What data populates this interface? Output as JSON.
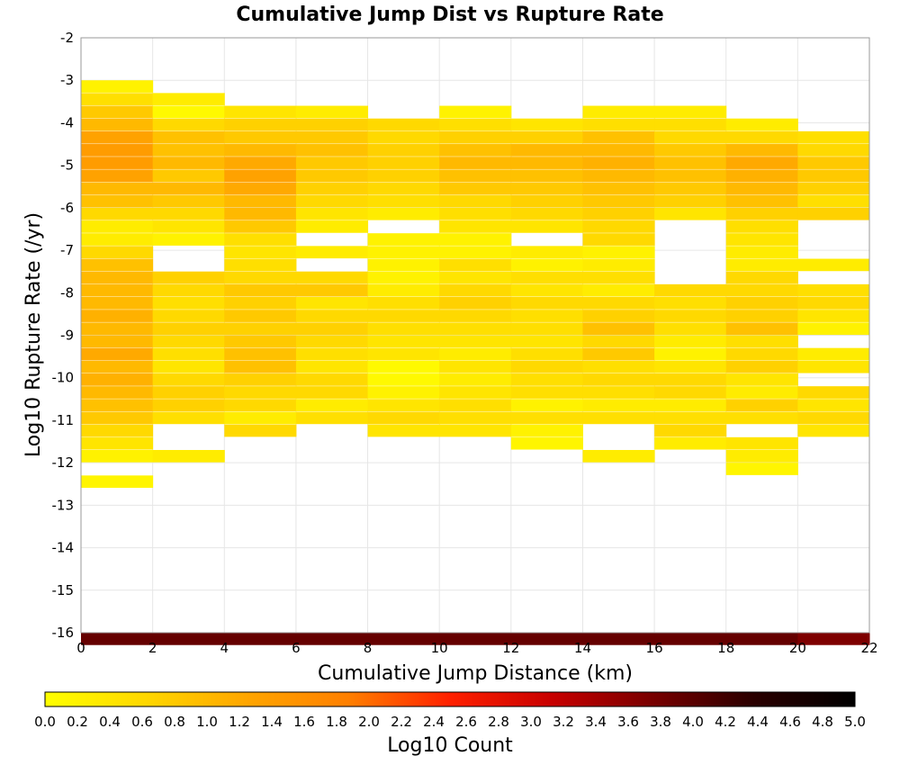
{
  "chart_data": {
    "type": "heatmap",
    "title": "Cumulative Jump Dist vs Rupture Rate",
    "xlabel": "Cumulative Jump Distance (km)",
    "ylabel": "Log10 Rupture Rate (/yr)",
    "xlim": [
      0,
      22
    ],
    "ylim": [
      -16,
      -2
    ],
    "xticks": [
      "0",
      "2",
      "4",
      "6",
      "8",
      "10",
      "12",
      "14",
      "16",
      "18",
      "20",
      "22"
    ],
    "yticks": [
      "-2",
      "-3",
      "-4",
      "-5",
      "-6",
      "-7",
      "-8",
      "-9",
      "-10",
      "-11",
      "-12",
      "-13",
      "-14",
      "-15",
      "-16"
    ],
    "x_bin_width": 2,
    "y_bin_height": 0.28,
    "grid": true,
    "colorbar": {
      "label": "Log10 Count",
      "min": 0.0,
      "max": 5.0,
      "ticks": [
        "0.0",
        "0.2",
        "0.4",
        "0.6",
        "0.8",
        "1.0",
        "1.2",
        "1.4",
        "1.6",
        "1.8",
        "2.0",
        "2.2",
        "2.4",
        "2.6",
        "2.8",
        "3.0",
        "3.2",
        "3.4",
        "3.6",
        "3.8",
        "4.0",
        "4.2",
        "4.4",
        "4.6",
        "4.8",
        "5.0"
      ],
      "stops": [
        "#ffff00",
        "#ffd700",
        "#ffa500",
        "#ff7f00",
        "#ff2000",
        "#c80000",
        "#780000",
        "#2a0000",
        "#000000"
      ]
    },
    "columns": [
      {
        "x_start": 0,
        "cells": [
          [
            -3.0,
            0.2
          ],
          [
            -3.3,
            0.5
          ],
          [
            -3.6,
            0.8
          ],
          [
            -3.9,
            1.0
          ],
          [
            -4.2,
            1.3
          ],
          [
            -4.5,
            1.4
          ],
          [
            -4.8,
            1.4
          ],
          [
            -5.1,
            1.3
          ],
          [
            -5.4,
            1.0
          ],
          [
            -5.7,
            0.9
          ],
          [
            -6.0,
            0.6
          ],
          [
            -6.3,
            0.3
          ],
          [
            -6.6,
            0.3
          ],
          [
            -6.9,
            0.6
          ],
          [
            -7.2,
            0.9
          ],
          [
            -7.5,
            1.0
          ],
          [
            -7.8,
            1.0
          ],
          [
            -8.1,
            1.0
          ],
          [
            -8.4,
            1.1
          ],
          [
            -8.7,
            1.0
          ],
          [
            -9.0,
            1.0
          ],
          [
            -9.3,
            1.2
          ],
          [
            -9.6,
            1.0
          ],
          [
            -9.9,
            1.1
          ],
          [
            -10.2,
            1.0
          ],
          [
            -10.5,
            0.9
          ],
          [
            -10.8,
            0.8
          ],
          [
            -11.1,
            0.6
          ],
          [
            -11.4,
            0.4
          ],
          [
            -11.7,
            0.2
          ],
          [
            -12.3,
            0.15
          ],
          [
            -16.0,
            3.9
          ]
        ]
      },
      {
        "x_start": 2,
        "cells": [
          [
            -3.3,
            0.3
          ],
          [
            -3.6,
            0.1
          ],
          [
            -3.9,
            0.6
          ],
          [
            -4.2,
            0.9
          ],
          [
            -4.5,
            0.9
          ],
          [
            -4.8,
            1.0
          ],
          [
            -5.1,
            0.8
          ],
          [
            -5.4,
            1.0
          ],
          [
            -5.7,
            0.8
          ],
          [
            -6.0,
            0.6
          ],
          [
            -6.3,
            0.4
          ],
          [
            -6.6,
            0.2
          ],
          [
            -7.5,
            0.7
          ],
          [
            -7.8,
            0.6
          ],
          [
            -8.1,
            0.5
          ],
          [
            -8.4,
            0.6
          ],
          [
            -8.7,
            0.7
          ],
          [
            -9.0,
            0.6
          ],
          [
            -9.3,
            0.5
          ],
          [
            -9.6,
            0.4
          ],
          [
            -9.9,
            0.6
          ],
          [
            -10.2,
            0.7
          ],
          [
            -10.5,
            0.7
          ],
          [
            -10.8,
            0.5
          ],
          [
            -11.7,
            0.3
          ],
          [
            -16.0,
            3.9
          ]
        ]
      },
      {
        "x_start": 4,
        "cells": [
          [
            -3.6,
            0.4
          ],
          [
            -3.9,
            0.7
          ],
          [
            -4.2,
            0.8
          ],
          [
            -4.5,
            1.0
          ],
          [
            -4.8,
            1.2
          ],
          [
            -5.1,
            1.3
          ],
          [
            -5.4,
            1.2
          ],
          [
            -5.7,
            1.0
          ],
          [
            -6.0,
            1.0
          ],
          [
            -6.3,
            0.8
          ],
          [
            -6.6,
            0.5
          ],
          [
            -6.9,
            0.4
          ],
          [
            -7.2,
            0.5
          ],
          [
            -7.5,
            0.6
          ],
          [
            -7.8,
            0.8
          ],
          [
            -8.1,
            0.7
          ],
          [
            -8.4,
            0.8
          ],
          [
            -8.7,
            0.7
          ],
          [
            -9.0,
            0.8
          ],
          [
            -9.3,
            0.9
          ],
          [
            -9.6,
            0.9
          ],
          [
            -9.9,
            0.7
          ],
          [
            -10.2,
            0.6
          ],
          [
            -10.5,
            0.6
          ],
          [
            -10.8,
            0.3
          ],
          [
            -11.1,
            0.6
          ],
          [
            -16.0,
            3.9
          ]
        ]
      },
      {
        "x_start": 6,
        "cells": [
          [
            -3.6,
            0.3
          ],
          [
            -3.9,
            0.7
          ],
          [
            -4.2,
            0.8
          ],
          [
            -4.5,
            0.9
          ],
          [
            -4.8,
            0.8
          ],
          [
            -5.1,
            0.8
          ],
          [
            -5.4,
            0.7
          ],
          [
            -5.7,
            0.6
          ],
          [
            -6.0,
            0.4
          ],
          [
            -6.3,
            0.3
          ],
          [
            -6.9,
            0.3
          ],
          [
            -7.5,
            0.6
          ],
          [
            -7.8,
            0.8
          ],
          [
            -8.1,
            0.4
          ],
          [
            -8.4,
            0.6
          ],
          [
            -8.7,
            0.7
          ],
          [
            -9.0,
            0.6
          ],
          [
            -9.3,
            0.5
          ],
          [
            -9.6,
            0.4
          ],
          [
            -9.9,
            0.6
          ],
          [
            -10.2,
            0.6
          ],
          [
            -10.5,
            0.3
          ],
          [
            -10.8,
            0.5
          ],
          [
            -16.0,
            3.9
          ]
        ]
      },
      {
        "x_start": 8,
        "cells": [
          [
            -3.9,
            0.6
          ],
          [
            -4.2,
            0.6
          ],
          [
            -4.5,
            0.7
          ],
          [
            -4.8,
            0.7
          ],
          [
            -5.1,
            0.7
          ],
          [
            -5.4,
            0.6
          ],
          [
            -5.7,
            0.5
          ],
          [
            -6.0,
            0.3
          ],
          [
            -6.6,
            0.2
          ],
          [
            -6.9,
            0.2
          ],
          [
            -7.2,
            0.2
          ],
          [
            -7.5,
            0.2
          ],
          [
            -7.8,
            0.3
          ],
          [
            -8.1,
            0.5
          ],
          [
            -8.4,
            0.6
          ],
          [
            -8.7,
            0.5
          ],
          [
            -9.0,
            0.4
          ],
          [
            -9.3,
            0.4
          ],
          [
            -9.6,
            0.1
          ],
          [
            -9.9,
            0.1
          ],
          [
            -10.2,
            0.2
          ],
          [
            -10.5,
            0.4
          ],
          [
            -10.8,
            0.6
          ],
          [
            -11.1,
            0.4
          ],
          [
            -16.0,
            3.9
          ]
        ]
      },
      {
        "x_start": 10,
        "cells": [
          [
            -3.6,
            0.2
          ],
          [
            -3.9,
            0.5
          ],
          [
            -4.2,
            0.7
          ],
          [
            -4.5,
            0.9
          ],
          [
            -4.8,
            1.0
          ],
          [
            -5.1,
            0.9
          ],
          [
            -5.4,
            0.8
          ],
          [
            -5.7,
            0.6
          ],
          [
            -6.0,
            0.5
          ],
          [
            -6.3,
            0.4
          ],
          [
            -6.6,
            0.2
          ],
          [
            -6.9,
            0.2
          ],
          [
            -7.2,
            0.5
          ],
          [
            -7.5,
            0.4
          ],
          [
            -7.8,
            0.6
          ],
          [
            -8.1,
            0.7
          ],
          [
            -8.4,
            0.6
          ],
          [
            -8.7,
            0.5
          ],
          [
            -9.0,
            0.4
          ],
          [
            -9.3,
            0.3
          ],
          [
            -9.6,
            0.4
          ],
          [
            -9.9,
            0.3
          ],
          [
            -10.2,
            0.4
          ],
          [
            -10.5,
            0.5
          ],
          [
            -10.8,
            0.5
          ],
          [
            -11.1,
            0.4
          ],
          [
            -16.0,
            3.9
          ]
        ]
      },
      {
        "x_start": 12,
        "cells": [
          [
            -3.9,
            0.4
          ],
          [
            -4.2,
            0.7
          ],
          [
            -4.5,
            1.0
          ],
          [
            -4.8,
            1.0
          ],
          [
            -5.1,
            0.9
          ],
          [
            -5.4,
            0.8
          ],
          [
            -5.7,
            0.7
          ],
          [
            -6.0,
            0.6
          ],
          [
            -6.3,
            0.4
          ],
          [
            -6.9,
            0.3
          ],
          [
            -7.2,
            0.2
          ],
          [
            -7.5,
            0.5
          ],
          [
            -7.8,
            0.4
          ],
          [
            -8.1,
            0.6
          ],
          [
            -8.4,
            0.5
          ],
          [
            -8.7,
            0.5
          ],
          [
            -9.0,
            0.4
          ],
          [
            -9.3,
            0.5
          ],
          [
            -9.6,
            0.6
          ],
          [
            -9.9,
            0.5
          ],
          [
            -10.2,
            0.5
          ],
          [
            -10.5,
            0.2
          ],
          [
            -10.8,
            0.5
          ],
          [
            -11.1,
            0.2
          ],
          [
            -11.4,
            0.15
          ],
          [
            -16.0,
            3.9
          ]
        ]
      },
      {
        "x_start": 14,
        "cells": [
          [
            -3.6,
            0.3
          ],
          [
            -3.9,
            0.5
          ],
          [
            -4.2,
            0.9
          ],
          [
            -4.5,
            1.0
          ],
          [
            -4.8,
            1.1
          ],
          [
            -5.1,
            1.0
          ],
          [
            -5.4,
            0.9
          ],
          [
            -5.7,
            0.8
          ],
          [
            -6.0,
            0.7
          ],
          [
            -6.3,
            0.6
          ],
          [
            -6.6,
            0.6
          ],
          [
            -6.9,
            0.2
          ],
          [
            -7.2,
            0.3
          ],
          [
            -7.5,
            0.5
          ],
          [
            -7.8,
            0.3
          ],
          [
            -8.1,
            0.6
          ],
          [
            -8.4,
            0.7
          ],
          [
            -8.7,
            0.9
          ],
          [
            -9.0,
            0.6
          ],
          [
            -9.3,
            0.8
          ],
          [
            -9.6,
            0.5
          ],
          [
            -9.9,
            0.6
          ],
          [
            -10.2,
            0.5
          ],
          [
            -10.5,
            0.3
          ],
          [
            -10.8,
            0.5
          ],
          [
            -11.7,
            0.3
          ],
          [
            -16.0,
            3.9
          ]
        ]
      },
      {
        "x_start": 16,
        "cells": [
          [
            -3.6,
            0.3
          ],
          [
            -3.9,
            0.5
          ],
          [
            -4.2,
            0.6
          ],
          [
            -4.5,
            0.8
          ],
          [
            -4.8,
            0.9
          ],
          [
            -5.1,
            0.9
          ],
          [
            -5.4,
            0.8
          ],
          [
            -5.7,
            0.7
          ],
          [
            -6.0,
            0.4
          ],
          [
            -7.8,
            0.6
          ],
          [
            -8.1,
            0.5
          ],
          [
            -8.4,
            0.6
          ],
          [
            -8.7,
            0.5
          ],
          [
            -9.0,
            0.3
          ],
          [
            -9.3,
            0.2
          ],
          [
            -9.6,
            0.4
          ],
          [
            -9.9,
            0.6
          ],
          [
            -10.2,
            0.6
          ],
          [
            -10.5,
            0.3
          ],
          [
            -10.8,
            0.5
          ],
          [
            -11.1,
            0.6
          ],
          [
            -11.4,
            0.3
          ],
          [
            -16.0,
            3.9
          ]
        ]
      },
      {
        "x_start": 18,
        "cells": [
          [
            -3.9,
            0.3
          ],
          [
            -4.2,
            0.6
          ],
          [
            -4.5,
            1.0
          ],
          [
            -4.8,
            1.2
          ],
          [
            -5.1,
            1.1
          ],
          [
            -5.4,
            1.0
          ],
          [
            -5.7,
            0.9
          ],
          [
            -6.0,
            0.7
          ],
          [
            -6.3,
            0.5
          ],
          [
            -6.6,
            0.4
          ],
          [
            -6.9,
            0.3
          ],
          [
            -7.2,
            0.3
          ],
          [
            -7.5,
            0.6
          ],
          [
            -7.8,
            0.6
          ],
          [
            -8.1,
            0.7
          ],
          [
            -8.4,
            0.7
          ],
          [
            -8.7,
            0.9
          ],
          [
            -9.0,
            0.5
          ],
          [
            -9.3,
            0.6
          ],
          [
            -9.6,
            0.7
          ],
          [
            -9.9,
            0.4
          ],
          [
            -10.2,
            0.3
          ],
          [
            -10.5,
            0.7
          ],
          [
            -10.8,
            0.5
          ],
          [
            -11.4,
            0.4
          ],
          [
            -11.7,
            0.3
          ],
          [
            -12.0,
            0.15
          ],
          [
            -16.0,
            3.9
          ]
        ]
      },
      {
        "x_start": 20,
        "cells": [
          [
            -4.2,
            0.5
          ],
          [
            -4.5,
            0.6
          ],
          [
            -4.8,
            0.8
          ],
          [
            -5.1,
            0.8
          ],
          [
            -5.4,
            0.7
          ],
          [
            -5.7,
            0.5
          ],
          [
            -6.0,
            0.7
          ],
          [
            -7.2,
            0.3
          ],
          [
            -7.8,
            0.5
          ],
          [
            -8.1,
            0.6
          ],
          [
            -8.4,
            0.4
          ],
          [
            -8.7,
            0.2
          ],
          [
            -9.3,
            0.3
          ],
          [
            -9.6,
            0.4
          ],
          [
            -10.2,
            0.6
          ],
          [
            -10.5,
            0.4
          ],
          [
            -10.8,
            0.6
          ],
          [
            -11.1,
            0.4
          ],
          [
            -16.0,
            3.7
          ]
        ]
      }
    ]
  }
}
